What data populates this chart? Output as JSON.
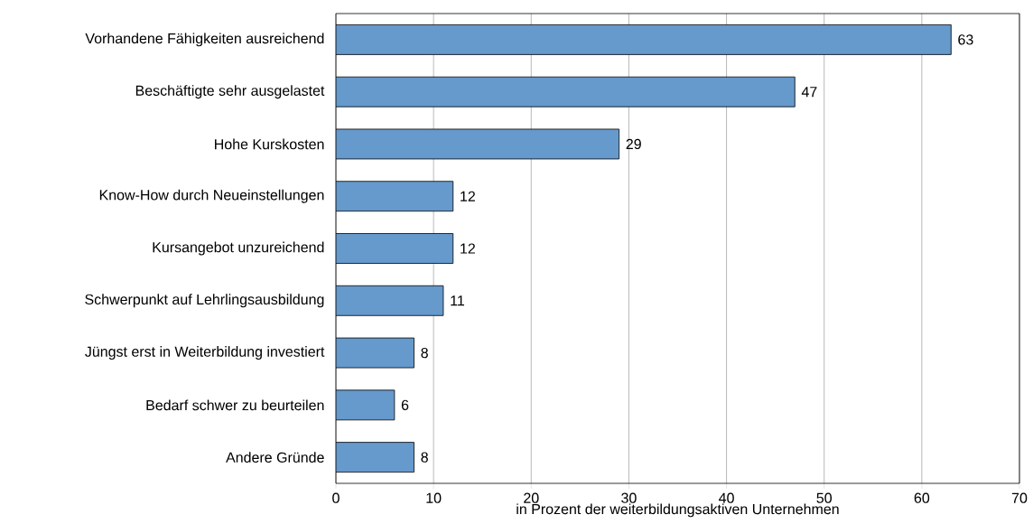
{
  "chart_data": {
    "type": "bar",
    "orientation": "horizontal",
    "xlabel": "in Prozent der weiterbildungsaktiven Unternehmen",
    "categories": [
      "Vorhandene Fähigkeiten ausreichend",
      "Beschäftigte sehr ausgelastet",
      "Hohe Kurskosten",
      "Know-How  durch Neueinstellungen",
      "Kursangebot unzureichend",
      "Schwerpunkt auf Lehrlingsausbildung",
      "Jüngst erst in Weiterbildung investiert",
      "Bedarf schwer zu beurteilen",
      "Andere Gründe"
    ],
    "values": [
      63,
      47,
      29,
      12,
      12,
      11,
      8,
      6,
      8
    ],
    "color": "#6699cc",
    "data_labels": true,
    "grid": "x",
    "xlim": [
      0,
      70
    ],
    "xticks": [
      0,
      10,
      20,
      30,
      40,
      50,
      60,
      70
    ]
  }
}
